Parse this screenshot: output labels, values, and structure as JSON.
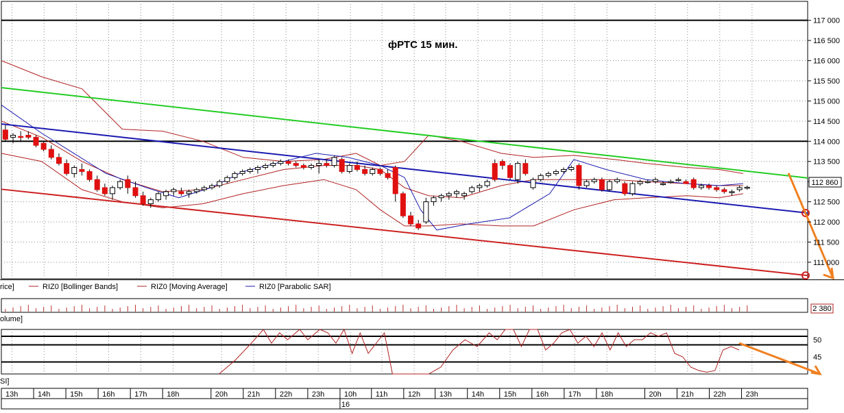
{
  "chart_data": {
    "type": "candlestick",
    "title": "фРТС   15 мин.",
    "y_ticks": [
      111000,
      111500,
      112000,
      112500,
      113000,
      113500,
      114000,
      114500,
      115000,
      115500,
      116000,
      116500,
      117000
    ],
    "y_tick_labels": [
      "111 000",
      "111 500",
      "112 000",
      "112 500",
      "113 000",
      "113 500",
      "114 000",
      "114 500",
      "115 000",
      "115 500",
      "116 000",
      "116 500",
      "117 000"
    ],
    "ylim": [
      110590,
      117470
    ],
    "last_price_label": "112 860",
    "levels": [
      117000,
      114000
    ],
    "trend_lines": [
      {
        "name": "green",
        "color": "#22cc22",
        "p1": [
          0,
          115330
        ],
        "p2": [
          1,
          113090
        ]
      },
      {
        "name": "blue",
        "color": "#1a1ab0",
        "p1": [
          0,
          114430
        ],
        "p2": [
          1,
          112220
        ]
      },
      {
        "name": "red",
        "color": "#cc2020",
        "p1": [
          0,
          112810
        ],
        "p2": [
          1,
          110670
        ]
      }
    ],
    "forecast_arrows": [
      {
        "from": [
          113210,
          -0.01
        ],
        "to": [
          110600,
          0.05
        ]
      }
    ],
    "legend": [
      {
        "label": "rice]",
        "color": "#000000"
      },
      {
        "label": "RIZ0 [Bollinger Bands]",
        "color": "#b02020"
      },
      {
        "label": "RIZ0 [Moving Average]",
        "color": "#b02020"
      },
      {
        "label": "RIZ0 [Parabolic SAR]",
        "color": "#1a1ab0"
      }
    ],
    "candles": [
      [
        114280,
        114400,
        114000,
        114050
      ],
      [
        114100,
        114200,
        113950,
        114150
      ],
      [
        114120,
        114250,
        114000,
        114100
      ],
      [
        114150,
        114250,
        114050,
        114100
      ],
      [
        114100,
        114150,
        113850,
        113900
      ],
      [
        113950,
        114000,
        113750,
        113800
      ],
      [
        113800,
        113900,
        113550,
        113600
      ],
      [
        113600,
        113700,
        113400,
        113450
      ],
      [
        113450,
        113550,
        113150,
        113200
      ],
      [
        113200,
        113400,
        113100,
        113350
      ],
      [
        113300,
        113450,
        113150,
        113250
      ],
      [
        113250,
        113300,
        113000,
        113050
      ],
      [
        113050,
        113150,
        112750,
        112800
      ],
      [
        112850,
        112950,
        112650,
        112700
      ],
      [
        112700,
        112900,
        112550,
        112850
      ],
      [
        112850,
        113050,
        112800,
        113000
      ],
      [
        113050,
        113150,
        112700,
        112850
      ],
      [
        112850,
        113000,
        112600,
        112650
      ],
      [
        112650,
        112750,
        112400,
        112450
      ],
      [
        112450,
        112600,
        112350,
        112550
      ],
      [
        112550,
        112750,
        112500,
        112700
      ],
      [
        112650,
        112800,
        112550,
        112750
      ],
      [
        112750,
        112850,
        112650,
        112800
      ],
      [
        112750,
        112850,
        112650,
        112700
      ],
      [
        112700,
        112800,
        112600,
        112750
      ],
      [
        112750,
        112850,
        112700,
        112800
      ],
      [
        112800,
        112900,
        112750,
        112850
      ],
      [
        112850,
        112950,
        112800,
        112900
      ],
      [
        112900,
        113050,
        112850,
        113000
      ],
      [
        113000,
        113150,
        112950,
        113100
      ],
      [
        113100,
        113250,
        113050,
        113200
      ],
      [
        113200,
        113300,
        113150,
        113250
      ],
      [
        113250,
        113350,
        113200,
        113300
      ],
      [
        113300,
        113400,
        113200,
        113350
      ],
      [
        113350,
        113450,
        113300,
        113400
      ],
      [
        113400,
        113500,
        113350,
        113450
      ],
      [
        113450,
        113550,
        113400,
        113500
      ],
      [
        113500,
        113550,
        113400,
        113450
      ],
      [
        113450,
        113500,
        113350,
        113400
      ],
      [
        113400,
        113450,
        113300,
        113350
      ],
      [
        113350,
        113450,
        113300,
        113400
      ],
      [
        113400,
        113550,
        113200,
        113450
      ],
      [
        113450,
        113550,
        113350,
        113400
      ],
      [
        113400,
        113650,
        113350,
        113600
      ],
      [
        113550,
        113600,
        113200,
        113250
      ],
      [
        113250,
        113450,
        113200,
        113400
      ],
      [
        113400,
        113500,
        113250,
        113300
      ],
      [
        113300,
        113400,
        113150,
        113200
      ],
      [
        113200,
        113350,
        113150,
        113300
      ],
      [
        113300,
        113350,
        113150,
        113200
      ],
      [
        113200,
        113300,
        113050,
        113100
      ],
      [
        113350,
        113400,
        112500,
        112700
      ],
      [
        112700,
        112750,
        112100,
        112150
      ],
      [
        112150,
        112250,
        111900,
        111950
      ],
      [
        111950,
        112050,
        111800,
        111850
      ],
      [
        112000,
        112600,
        111950,
        112500
      ],
      [
        112500,
        112650,
        112400,
        112600
      ],
      [
        112600,
        112700,
        112500,
        112650
      ],
      [
        112650,
        112750,
        112550,
        112700
      ],
      [
        112700,
        112800,
        112600,
        112750
      ],
      [
        112650,
        112750,
        112550,
        112700
      ],
      [
        112750,
        112900,
        112700,
        112850
      ],
      [
        112850,
        112950,
        112750,
        112900
      ],
      [
        112900,
        113050,
        112850,
        113000
      ],
      [
        113450,
        113550,
        113000,
        113050
      ],
      [
        113500,
        113550,
        113300,
        113400
      ],
      [
        113400,
        113450,
        113050,
        113100
      ],
      [
        113050,
        113500,
        112950,
        113450
      ],
      [
        113450,
        113550,
        113150,
        113200
      ],
      [
        112850,
        113100,
        112800,
        113050
      ],
      [
        113050,
        113200,
        113000,
        113150
      ],
      [
        113150,
        113250,
        113100,
        113200
      ],
      [
        113200,
        113300,
        113150,
        113250
      ],
      [
        113250,
        113350,
        113200,
        113300
      ],
      [
        113300,
        113400,
        113250,
        113350
      ],
      [
        113400,
        113450,
        112800,
        112900
      ],
      [
        112900,
        113050,
        112850,
        113000
      ],
      [
        113000,
        113100,
        112950,
        113050
      ],
      [
        113050,
        113100,
        112750,
        112800
      ],
      [
        112800,
        113050,
        112750,
        113000
      ],
      [
        113000,
        113100,
        112950,
        113050
      ],
      [
        112950,
        113000,
        112650,
        112700
      ],
      [
        112700,
        113000,
        112650,
        112950
      ],
      [
        112950,
        113050,
        112900,
        113000
      ],
      [
        113000,
        113050,
        112950,
        113000
      ],
      [
        113000,
        113100,
        112950,
        113050
      ],
      [
        112950,
        113000,
        112900,
        112950
      ],
      [
        113000,
        113050,
        112950,
        113000
      ],
      [
        113050,
        113100,
        113000,
        113050
      ],
      [
        113000,
        113050,
        112950,
        112950
      ],
      [
        113050,
        113100,
        112800,
        112850
      ],
      [
        112850,
        112950,
        112800,
        112900
      ],
      [
        112900,
        112950,
        112800,
        112850
      ],
      [
        112850,
        112900,
        112750,
        112800
      ],
      [
        112800,
        112850,
        112700,
        112750
      ],
      [
        112750,
        112800,
        112650,
        112750
      ],
      [
        112800,
        112900,
        112750,
        112850
      ],
      [
        112850,
        112900,
        112800,
        112860
      ]
    ],
    "bollinger_upper": [
      [
        0,
        116000
      ],
      [
        0.05,
        115600
      ],
      [
        0.1,
        115300
      ],
      [
        0.15,
        114300
      ],
      [
        0.2,
        114250
      ],
      [
        0.25,
        114000
      ],
      [
        0.3,
        113600
      ],
      [
        0.35,
        113500
      ],
      [
        0.4,
        113550
      ],
      [
        0.44,
        113700
      ],
      [
        0.47,
        113400
      ],
      [
        0.5,
        113500
      ],
      [
        0.53,
        114150
      ],
      [
        0.57,
        114000
      ],
      [
        0.62,
        113700
      ],
      [
        0.66,
        113600
      ],
      [
        0.71,
        113650
      ],
      [
        0.76,
        113550
      ],
      [
        0.8,
        113450
      ],
      [
        0.85,
        113350
      ],
      [
        0.89,
        113300
      ],
      [
        0.92,
        113200
      ]
    ],
    "bollinger_lower": [
      [
        0,
        113700
      ],
      [
        0.05,
        113500
      ],
      [
        0.1,
        112800
      ],
      [
        0.15,
        112500
      ],
      [
        0.2,
        112350
      ],
      [
        0.25,
        112450
      ],
      [
        0.3,
        112700
      ],
      [
        0.35,
        112900
      ],
      [
        0.4,
        113050
      ],
      [
        0.44,
        112800
      ],
      [
        0.47,
        112300
      ],
      [
        0.5,
        111900
      ],
      [
        0.53,
        111900
      ],
      [
        0.57,
        111950
      ],
      [
        0.62,
        111900
      ],
      [
        0.66,
        111900
      ],
      [
        0.71,
        112300
      ],
      [
        0.76,
        112550
      ],
      [
        0.8,
        112600
      ],
      [
        0.85,
        112650
      ],
      [
        0.89,
        112600
      ],
      [
        0.92,
        112700
      ]
    ],
    "moving_average": [
      [
        0,
        114500
      ],
      [
        0.05,
        114100
      ],
      [
        0.1,
        113500
      ],
      [
        0.15,
        113050
      ],
      [
        0.2,
        112750
      ],
      [
        0.25,
        112800
      ],
      [
        0.3,
        113050
      ],
      [
        0.35,
        113300
      ],
      [
        0.4,
        113400
      ],
      [
        0.44,
        113400
      ],
      [
        0.47,
        113300
      ],
      [
        0.5,
        112850
      ],
      [
        0.53,
        112650
      ],
      [
        0.57,
        112600
      ],
      [
        0.62,
        112900
      ],
      [
        0.66,
        113050
      ],
      [
        0.71,
        113050
      ],
      [
        0.76,
        113050
      ],
      [
        0.8,
        113000
      ],
      [
        0.85,
        112950
      ],
      [
        0.89,
        112900
      ],
      [
        0.92,
        112900
      ]
    ],
    "parabolic_sar": [
      [
        0,
        114900
      ],
      [
        0.05,
        114200
      ],
      [
        0.09,
        113700
      ],
      [
        0.13,
        113200
      ],
      [
        0.18,
        112850
      ],
      [
        0.22,
        112600
      ],
      [
        0.26,
        112850
      ],
      [
        0.3,
        113250
      ],
      [
        0.35,
        113500
      ],
      [
        0.39,
        113700
      ],
      [
        0.43,
        113600
      ],
      [
        0.47,
        113400
      ],
      [
        0.5,
        113100
      ],
      [
        0.52,
        112300
      ],
      [
        0.54,
        111800
      ],
      [
        0.58,
        111950
      ],
      [
        0.63,
        112100
      ],
      [
        0.68,
        112700
      ],
      [
        0.71,
        113550
      ],
      [
        0.75,
        113300
      ],
      [
        0.8,
        113050
      ],
      [
        0.85,
        112950
      ],
      [
        0.89,
        112900
      ],
      [
        0.92,
        112950
      ]
    ],
    "volume": {
      "label": "olume]",
      "last_value_label": "2 380"
    },
    "rsi": {
      "label": "SI]",
      "tick_labels": [
        "50",
        "45"
      ],
      "levels": [
        51,
        48.5,
        43.5
      ],
      "range": [
        40,
        53
      ],
      "series": [
        [
          0.27,
          40
        ],
        [
          0.29,
          44
        ],
        [
          0.31,
          49
        ],
        [
          0.325,
          53
        ],
        [
          0.335,
          49
        ],
        [
          0.345,
          52
        ],
        [
          0.355,
          50
        ],
        [
          0.37,
          53
        ],
        [
          0.38,
          50
        ],
        [
          0.395,
          53
        ],
        [
          0.405,
          52
        ],
        [
          0.415,
          49
        ],
        [
          0.425,
          53
        ],
        [
          0.435,
          46
        ],
        [
          0.445,
          52
        ],
        [
          0.455,
          46
        ],
        [
          0.465,
          49
        ],
        [
          0.475,
          52
        ],
        [
          0.485,
          40
        ],
        [
          0.53,
          40
        ],
        [
          0.545,
          42
        ],
        [
          0.56,
          47
        ],
        [
          0.575,
          50
        ],
        [
          0.59,
          48
        ],
        [
          0.605,
          52
        ],
        [
          0.615,
          50
        ],
        [
          0.625,
          53
        ],
        [
          0.635,
          53
        ],
        [
          0.645,
          48
        ],
        [
          0.655,
          53
        ],
        [
          0.665,
          53
        ],
        [
          0.675,
          47
        ],
        [
          0.685,
          49
        ],
        [
          0.695,
          52
        ],
        [
          0.705,
          53
        ],
        [
          0.715,
          49
        ],
        [
          0.725,
          51
        ],
        [
          0.735,
          48
        ],
        [
          0.745,
          52
        ],
        [
          0.755,
          47
        ],
        [
          0.765,
          52
        ],
        [
          0.775,
          48
        ],
        [
          0.785,
          50
        ],
        [
          0.795,
          50
        ],
        [
          0.805,
          52
        ],
        [
          0.815,
          51
        ],
        [
          0.825,
          52
        ],
        [
          0.835,
          46
        ],
        [
          0.845,
          45
        ],
        [
          0.855,
          42
        ],
        [
          0.865,
          41
        ],
        [
          0.875,
          40.5
        ],
        [
          0.885,
          41
        ],
        [
          0.895,
          47
        ],
        [
          0.905,
          48
        ],
        [
          0.915,
          47
        ]
      ],
      "forecast_arrow": {
        "from": [
          0.915,
          49
        ],
        "to": [
          0.99,
          40
        ]
      }
    },
    "x_tick_labels": [
      "13h",
      "14h",
      "15h",
      "16h",
      "17h",
      "18h",
      "20h",
      "21h",
      "22h",
      "23h",
      "10h",
      "11h",
      "12h",
      "13h",
      "14h",
      "15h",
      "16h",
      "17h",
      "18h",
      "20h",
      "21h",
      "22h",
      "23h"
    ],
    "x_tick_positions": [
      0.013,
      0.053,
      0.093,
      0.133,
      0.173,
      0.213,
      0.273,
      0.313,
      0.353,
      0.393,
      0.433,
      0.472,
      0.512,
      0.551,
      0.591,
      0.631,
      0.671,
      0.711,
      0.751,
      0.811,
      0.851,
      0.891,
      0.931
    ],
    "date_label": "16",
    "date_position": 0.433
  }
}
